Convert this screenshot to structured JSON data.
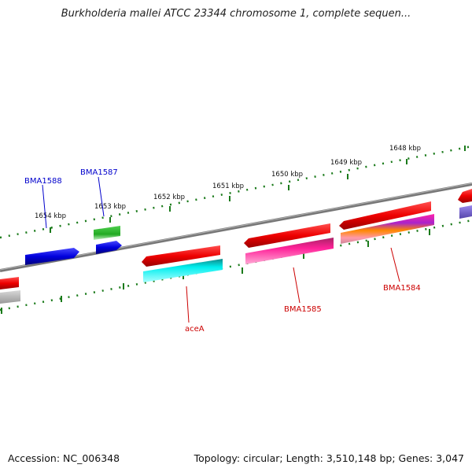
{
  "title": "Burkholderia mallei ATCC 23344 chromosome 1, complete sequen...",
  "footer": {
    "accession": "Accession: NC_006348",
    "summary": "Topology: circular; Length: 3,510,148 bp; Genes: 3,047"
  },
  "ruler": {
    "tick_labels": [
      "1654 kbp",
      "1653 kbp",
      "1652 kbp",
      "1651 kbp",
      "1650 kbp",
      "1649 kbp",
      "1648 kbp"
    ],
    "tick_color": "#1a7a1a"
  },
  "genes": [
    {
      "label": "BMA1588",
      "color": "#0000cc"
    },
    {
      "label": "BMA1587",
      "color": "#0000cc"
    },
    {
      "label": "aceA",
      "color": "#cc0000"
    },
    {
      "label": "BMA1585",
      "color": "#cc0000"
    },
    {
      "label": "BMA1584",
      "color": "#cc0000"
    }
  ],
  "colors": {
    "backbone": "#808080",
    "red_feature": "#ee1111",
    "blue_feature": "#1010dd",
    "green_feature": "#2fb82f",
    "cyan_feature": "#11e5ee",
    "magenta_feature": "#ee2299",
    "purple_feature": "#7766cc",
    "gray_feature": "#b8b8b8"
  }
}
